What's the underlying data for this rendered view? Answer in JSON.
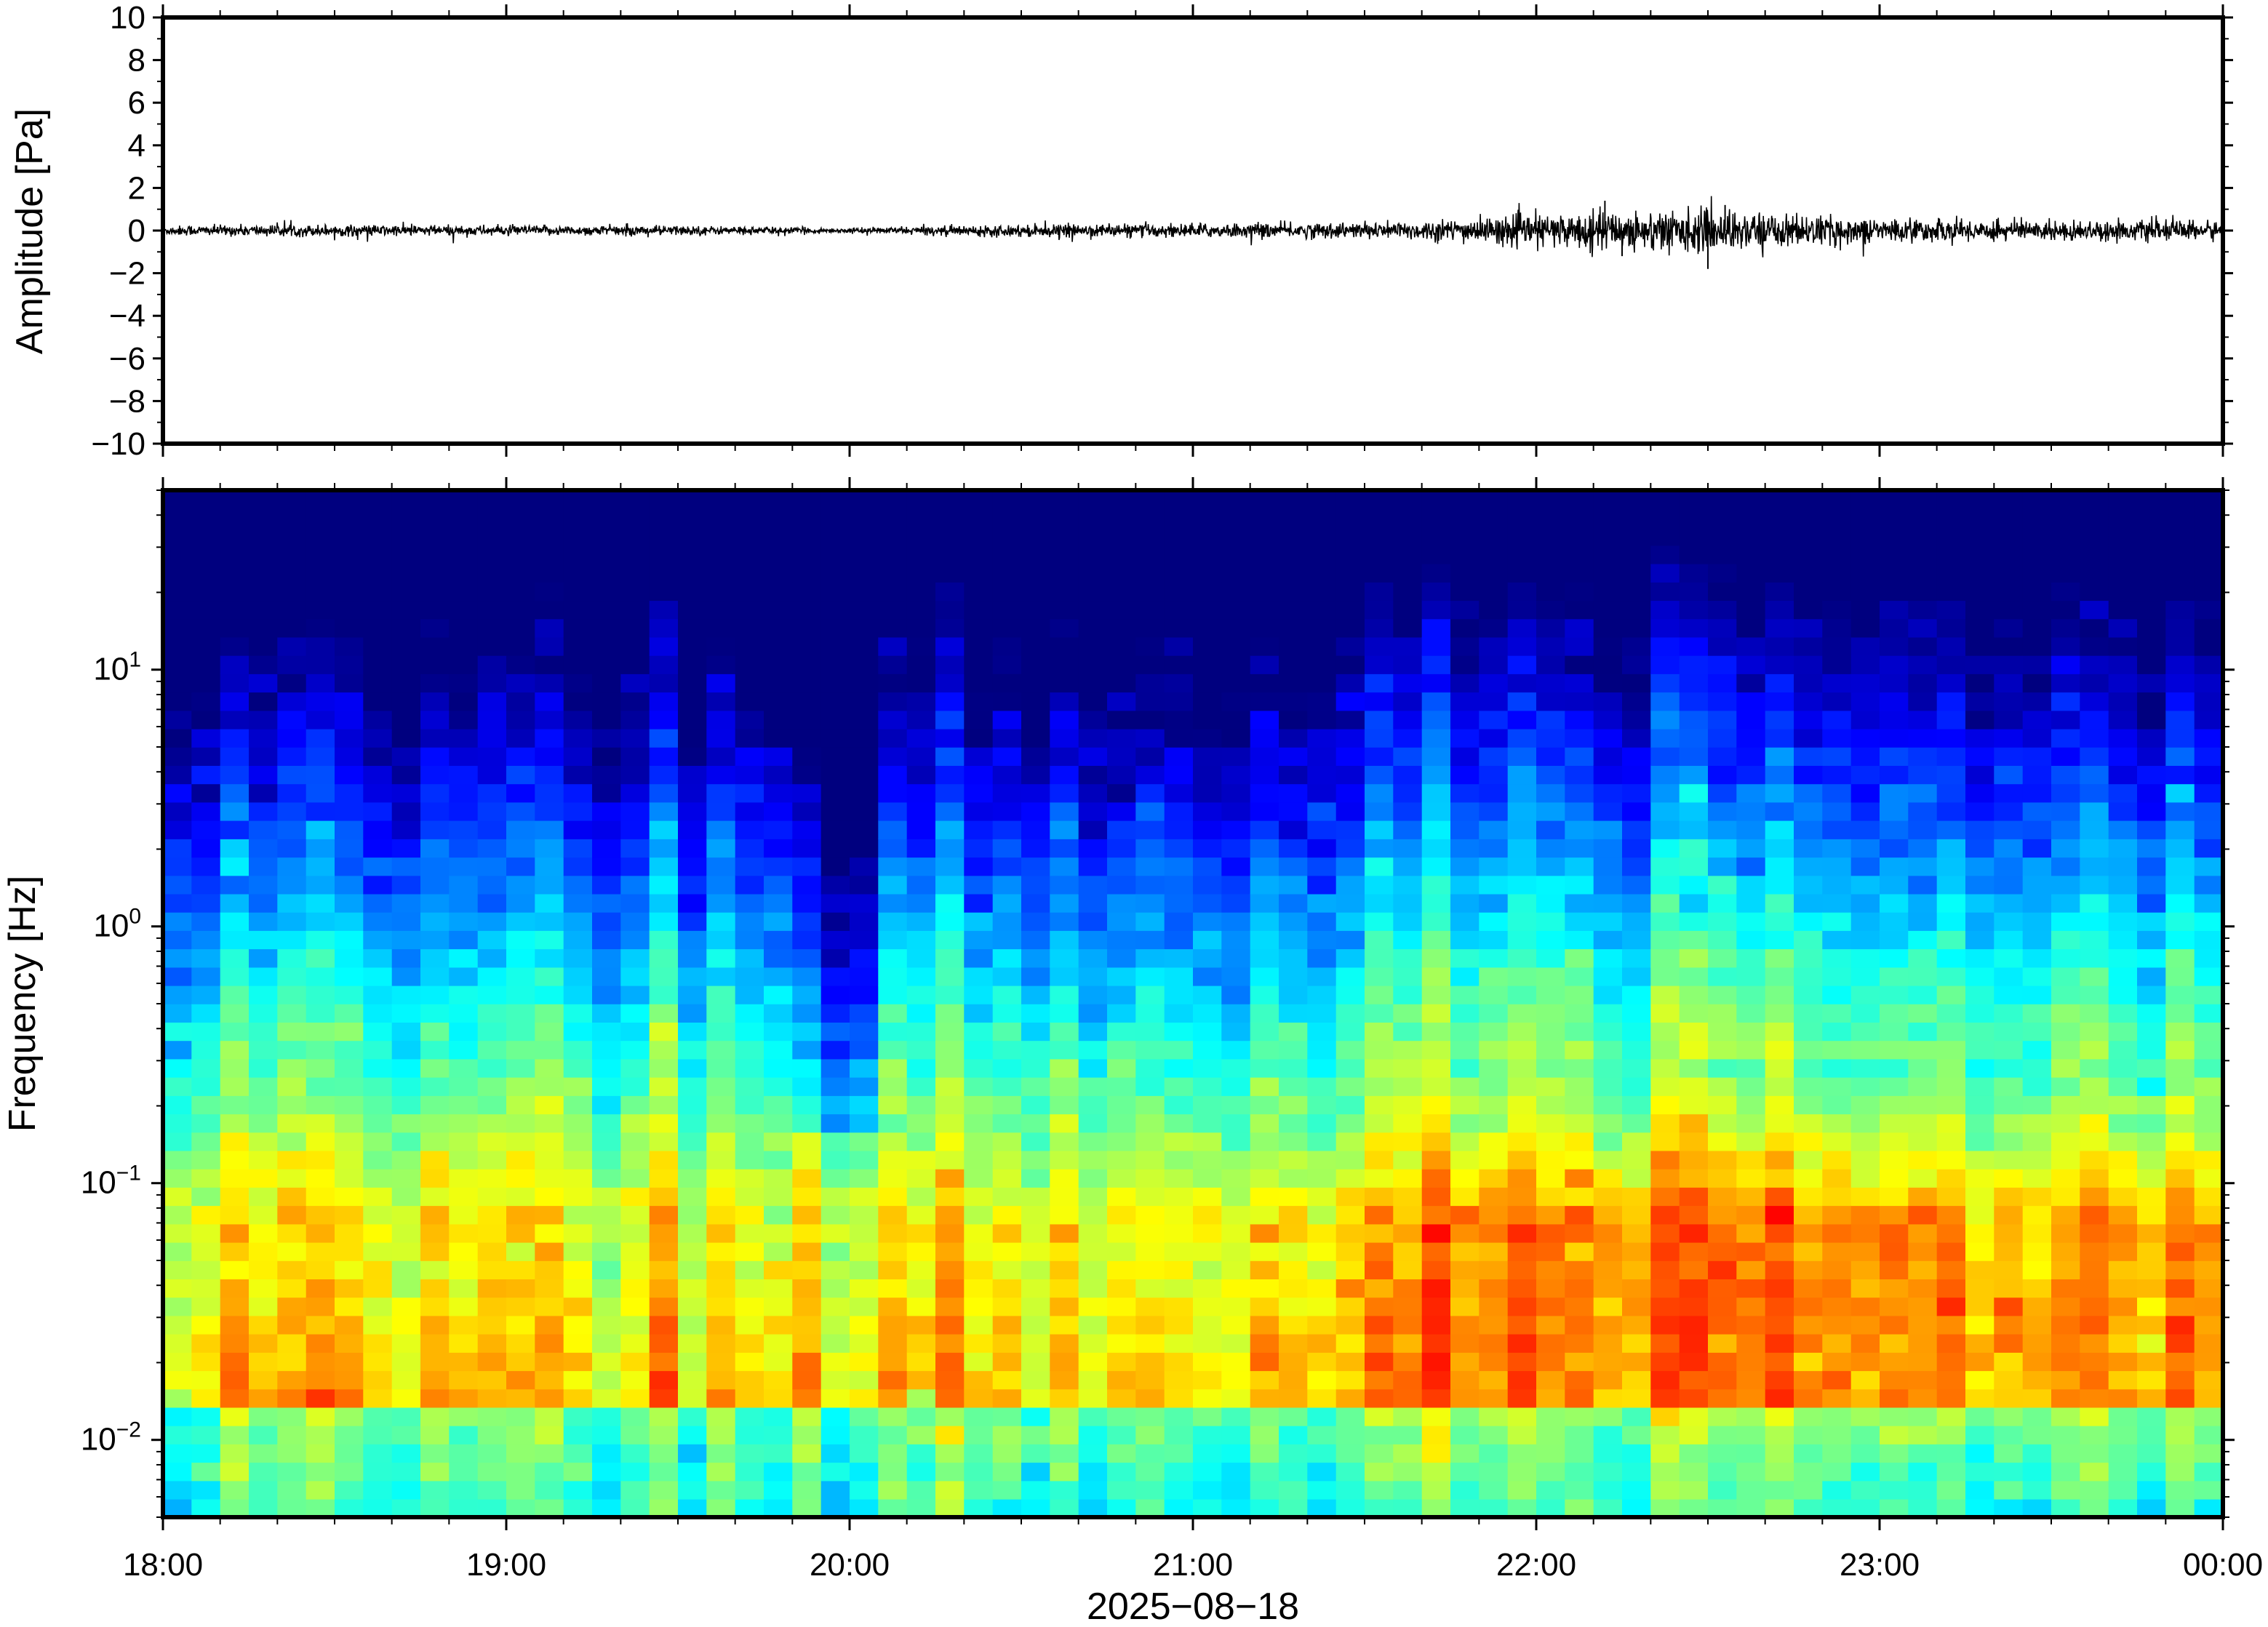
{
  "chart_data": [
    {
      "type": "line",
      "title": "",
      "ylabel": "Amplitude [Pa]",
      "xlabel": "",
      "ylim": [
        -10,
        10
      ],
      "y_ticks": [
        "10",
        "8",
        "6",
        "4",
        "2",
        "0",
        "−2",
        "−4",
        "−6",
        "−8",
        "−10"
      ],
      "x": [
        "18:00",
        "19:00",
        "20:00",
        "21:00",
        "22:00",
        "23:00",
        "00:00"
      ],
      "xlim": [
        "2025-08-18T18:00",
        "2025-08-19T00:00"
      ],
      "envelope_hours": [
        18.0,
        18.5,
        19.0,
        19.5,
        20.0,
        20.3,
        20.5,
        21.0,
        21.5,
        21.75,
        22.0,
        22.25,
        22.5,
        22.75,
        23.0,
        23.25,
        23.5,
        24.0
      ],
      "envelope_amp": [
        0.25,
        0.3,
        0.25,
        0.25,
        0.12,
        0.25,
        0.3,
        0.35,
        0.4,
        0.55,
        0.8,
        1.0,
        1.1,
        0.8,
        0.6,
        0.55,
        0.5,
        0.5
      ],
      "peak_events": [
        {
          "hour": 22.2,
          "value": 1.4
        },
        {
          "hour": 22.25,
          "value": -1.2
        },
        {
          "hour": 22.5,
          "value": -1.8
        },
        {
          "hour": 22.55,
          "value": 1.2
        }
      ],
      "trace_color": "#000000"
    },
    {
      "type": "heatmap",
      "title": "",
      "ylabel": "Frequency [Hz]",
      "xlabel": "2025−08−18",
      "x_ticks": [
        "18:00",
        "19:00",
        "20:00",
        "21:00",
        "22:00",
        "23:00",
        "00:00"
      ],
      "y_scale": "log",
      "ylim": [
        0.005,
        50
      ],
      "y_ticks": [
        {
          "value": 0.01,
          "base": "10",
          "exp": "−2"
        },
        {
          "value": 0.1,
          "base": "10",
          "exp": "−1"
        },
        {
          "value": 1,
          "base": "10",
          "exp": "0"
        },
        {
          "value": 10,
          "base": "10",
          "exp": "1"
        }
      ],
      "colormap": "jet",
      "colormap_colors": [
        "#00007f",
        "#0000ff",
        "#007fff",
        "#00ffff",
        "#7fff7f",
        "#ffff00",
        "#ff7f00",
        "#ff0000"
      ],
      "time_bins": 72,
      "freq_bins": 56,
      "features": {
        "low_power_band_hours": [
          19.8,
          20.1
        ],
        "high_power_window_hours": [
          21.8,
          23.0
        ],
        "peak_power_frequency_hz": 0.05
      }
    }
  ]
}
